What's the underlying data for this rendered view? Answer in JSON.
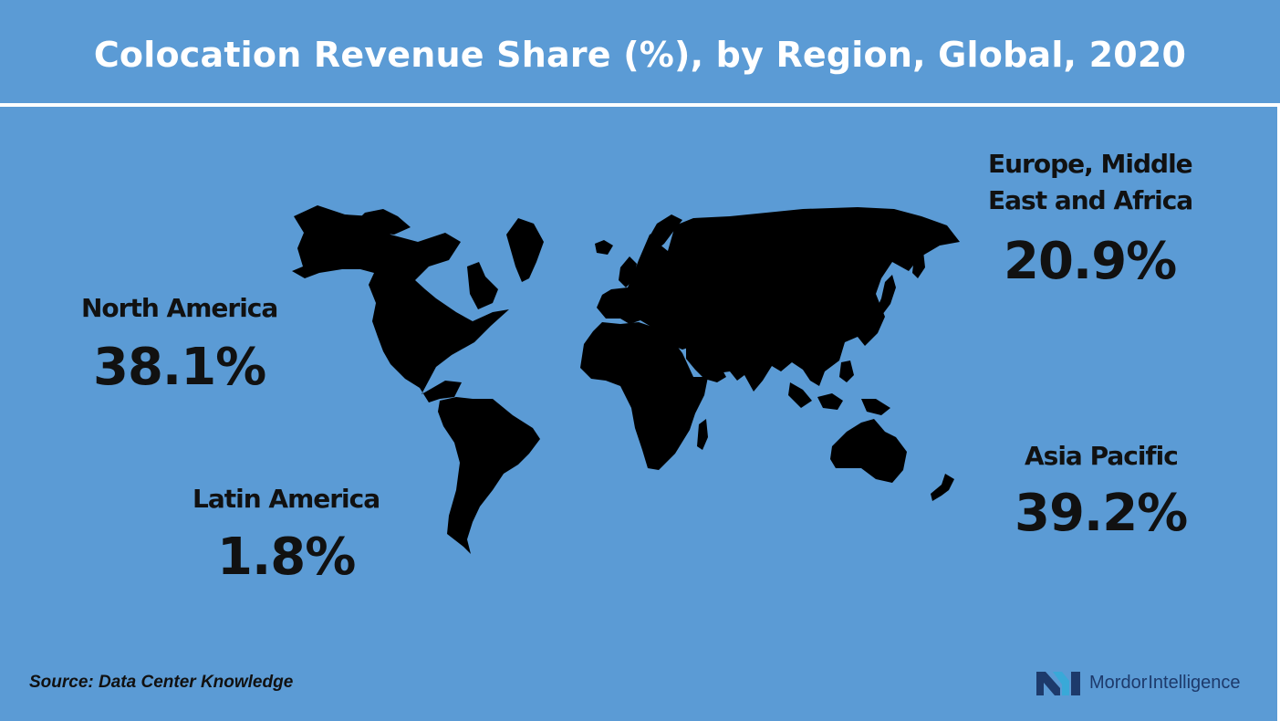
{
  "title": "Colocation Revenue Share (%), by Region, Global, 2020",
  "regions": [
    {
      "name": "North America",
      "value": "38.1%"
    },
    {
      "name": "Latin America",
      "value": "1.8%"
    },
    {
      "name": "Europe, Middle",
      "name_line2": "East and Africa",
      "value": "20.9%"
    },
    {
      "name": "Asia Pacific",
      "value": "39.2%"
    }
  ],
  "source": "Source: Data Center Knowledge",
  "brand": {
    "word1": "Mordor",
    "word2": "Intelligence"
  },
  "colors": {
    "background": "#5b9bd5",
    "land": "#000000",
    "text": "#111111",
    "title": "#ffffff",
    "brand_dark": "#1d3a6b",
    "brand_light": "#39a9d8"
  },
  "icons": [
    "world-map",
    "mordor-intelligence-logo"
  ]
}
